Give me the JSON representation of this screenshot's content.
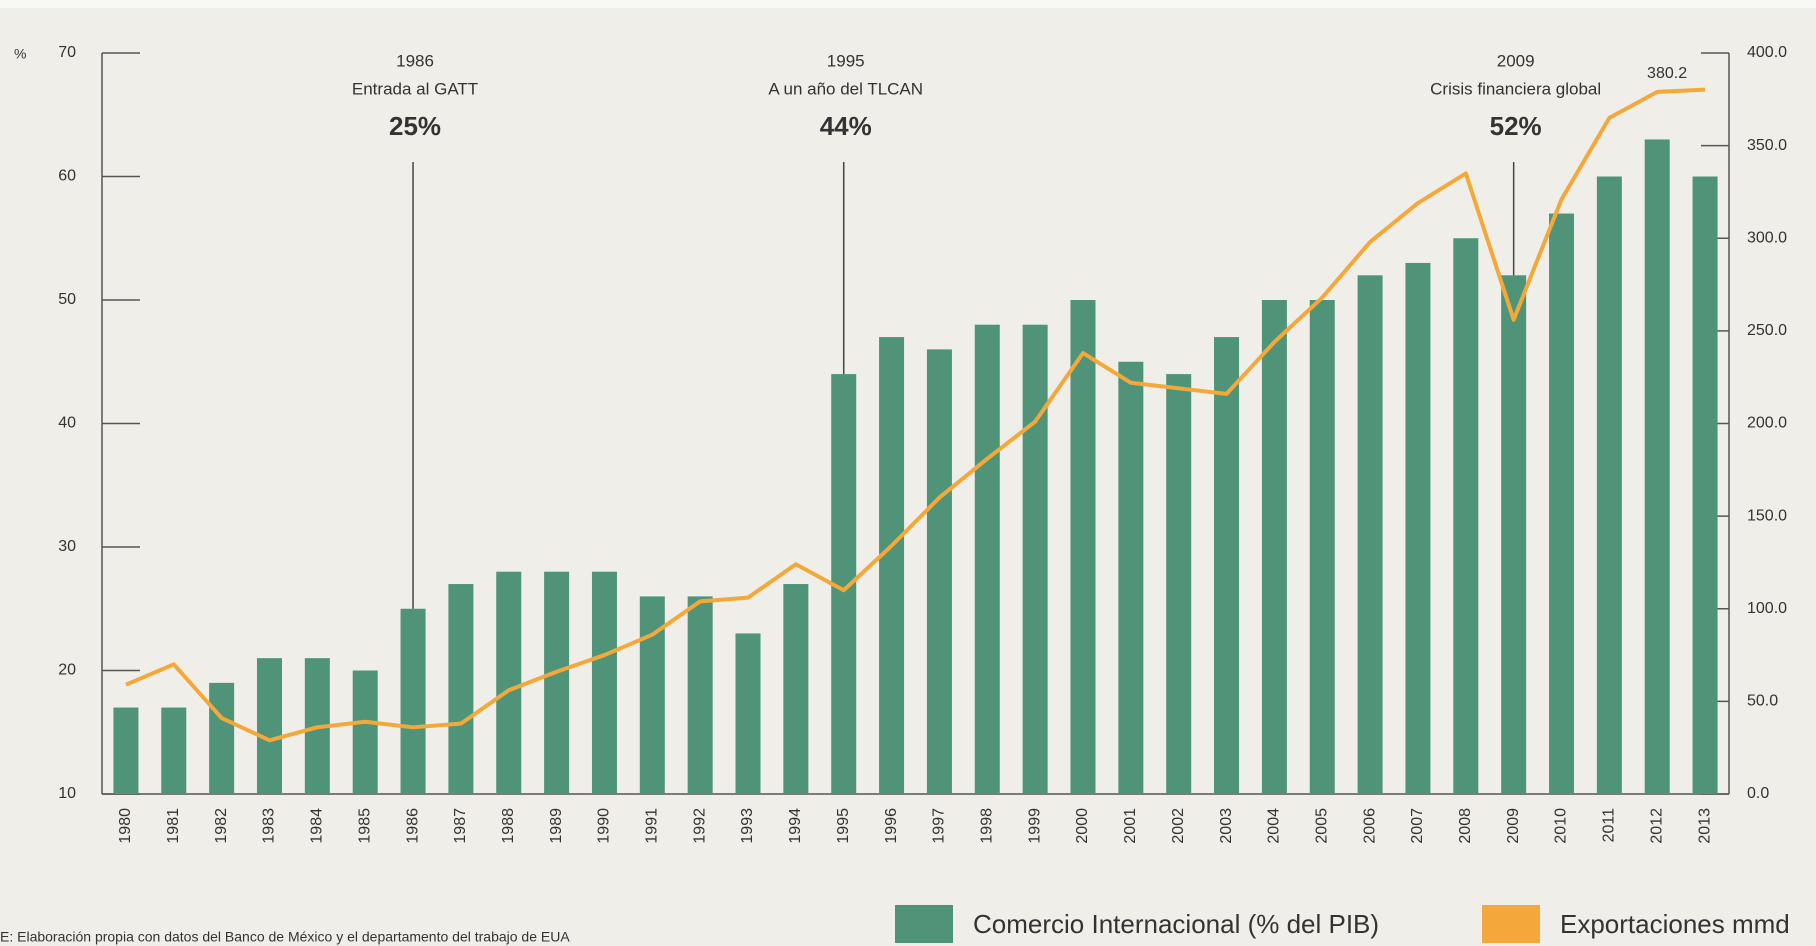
{
  "chart_data": {
    "type": "bar_line",
    "y_unit": "%",
    "categories": [
      "1980",
      "1981",
      "1982",
      "1983",
      "1984",
      "1985",
      "1986",
      "1987",
      "1988",
      "1989",
      "1990",
      "1991",
      "1992",
      "1993",
      "1994",
      "1995",
      "1996",
      "1997",
      "1998",
      "1999",
      "2000",
      "2001",
      "2002",
      "2003",
      "2004",
      "2005",
      "2006",
      "2007",
      "2008",
      "2009",
      "2010",
      "2011",
      "2012",
      "2013"
    ],
    "series": [
      {
        "name": "Comercio Internacional (% del PIB)",
        "color": "#4f9479",
        "type": "bar",
        "values": [
          17,
          17,
          19,
          21,
          21,
          20,
          25,
          27,
          28,
          28,
          28,
          26,
          26,
          23,
          27,
          44,
          47,
          46,
          48,
          48,
          50,
          45,
          44,
          47,
          50,
          50,
          52,
          53,
          55,
          52,
          57,
          60,
          63,
          60
        ]
      },
      {
        "name": "Exportaciones mmd",
        "color": "#f5a83a",
        "type": "line",
        "axis": "y2",
        "values": [
          59,
          70,
          41,
          29,
          36,
          39,
          36,
          38,
          56,
          66,
          75,
          86,
          104,
          106,
          124,
          110,
          134,
          160,
          181,
          201,
          238,
          222,
          219,
          216,
          244,
          268,
          298,
          319,
          335,
          256,
          321,
          365,
          379,
          380.2
        ],
        "value_labels": [
          null,
          null,
          null,
          null,
          null,
          null,
          null,
          null,
          null,
          null,
          null,
          null,
          null,
          null,
          null,
          null,
          null,
          null,
          null,
          null,
          null,
          null,
          null,
          null,
          null,
          null,
          null,
          null,
          null,
          null,
          null,
          null,
          null,
          "380.2"
        ]
      }
    ],
    "ylim": [
      10,
      70
    ],
    "yticks": [
      10,
      20,
      30,
      40,
      50,
      60,
      70
    ],
    "y2lim": [
      0,
      400
    ],
    "y2ticks": [
      {
        "value": 0,
        "label": "0.0"
      },
      {
        "value": 50,
        "label": "50.0"
      },
      {
        "value": 100,
        "label": "100.0"
      },
      {
        "value": 150,
        "label": "150.0"
      },
      {
        "value": 200,
        "label": "200.0"
      },
      {
        "value": 250,
        "label": "250.0"
      },
      {
        "value": 300,
        "label": "300.0"
      },
      {
        "value": 350,
        "label": "350.0"
      },
      {
        "value": 400,
        "label": "400.0"
      }
    ],
    "annotations": [
      {
        "year": "1986",
        "text": "Entrada al GATT",
        "label": "25%"
      },
      {
        "year": "1995",
        "text": "A un año del TLCAN",
        "label": "44%"
      },
      {
        "year": "2009",
        "text": "Crisis financiera global",
        "label": "52%"
      }
    ],
    "source": "E: Elaboración propia con datos del Banco de México y el departamento del trabajo de EUA"
  }
}
